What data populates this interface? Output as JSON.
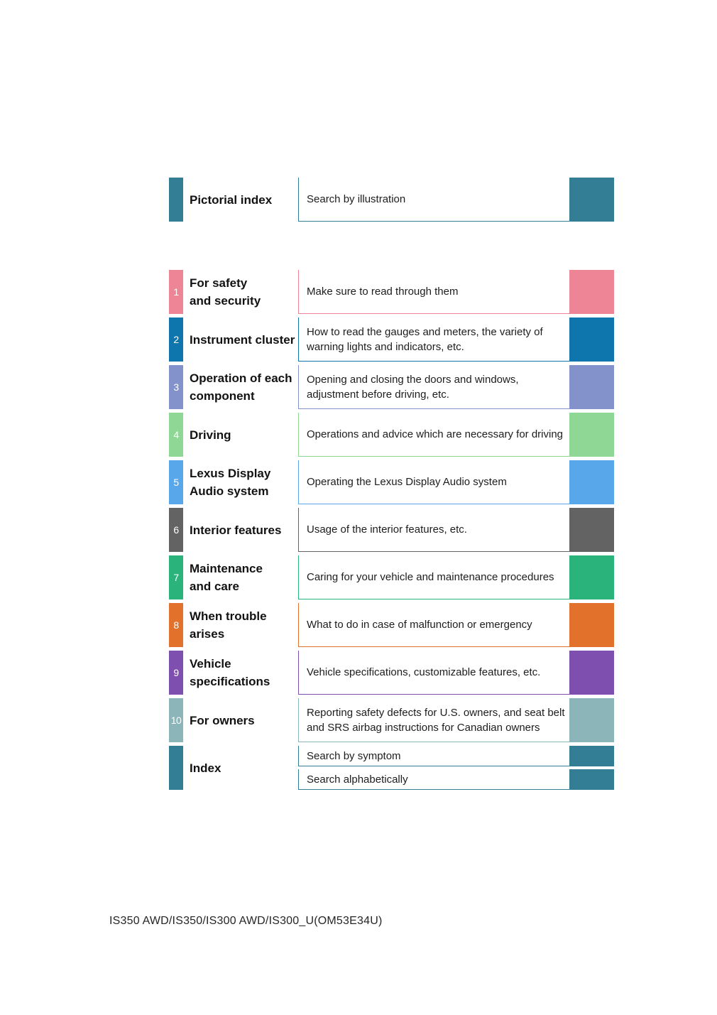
{
  "toc": {
    "pictorial": {
      "title": "Pictorial index",
      "description": "Search by illustration",
      "color": "#337e95"
    },
    "sections": [
      {
        "number": "1",
        "title": "For safety\nand security",
        "description": "Make sure to read through them",
        "color": "#ee8596"
      },
      {
        "number": "2",
        "title": "Instrument cluster",
        "description": "How to read the gauges and meters, the variety of warning lights and indicators, etc.",
        "color": "#0f76ad"
      },
      {
        "number": "3",
        "title": "Operation of each\ncomponent",
        "description": "Opening and closing the doors and windows, adjustment before driving, etc.",
        "color": "#8492cb"
      },
      {
        "number": "4",
        "title": "Driving",
        "description": "Operations and advice which are necessary for driving",
        "color": "#8fd794"
      },
      {
        "number": "5",
        "title": "Lexus Display\nAudio system",
        "description": "Operating the Lexus Display Audio system",
        "color": "#58a7ea"
      },
      {
        "number": "6",
        "title": "Interior features",
        "description": "Usage of the interior features, etc.",
        "color": "#636363"
      },
      {
        "number": "7",
        "title": "Maintenance\nand care",
        "description": "Caring for your vehicle and maintenance procedures",
        "color": "#2bb37c"
      },
      {
        "number": "8",
        "title": "When trouble\narises",
        "description": "What to do in case of malfunction or emergency",
        "color": "#e2712b"
      },
      {
        "number": "9",
        "title": "Vehicle\nspecifications",
        "description": "Vehicle specifications, customizable features, etc.",
        "color": "#7f4fb0"
      },
      {
        "number": "10",
        "title": "For owners",
        "description": "Reporting safety defects for U.S. owners, and seat belt and SRS airbag instructions for Canadian owners",
        "color": "#8cb5b9"
      }
    ],
    "index": {
      "title": "Index",
      "color": "#337e95",
      "items": [
        {
          "label": "Search by symptom"
        },
        {
          "label": "Search alphabetically"
        }
      ]
    }
  },
  "footer": {
    "model_code": "IS350 AWD/IS350/IS300 AWD/IS300_U(OM53E34U)"
  }
}
